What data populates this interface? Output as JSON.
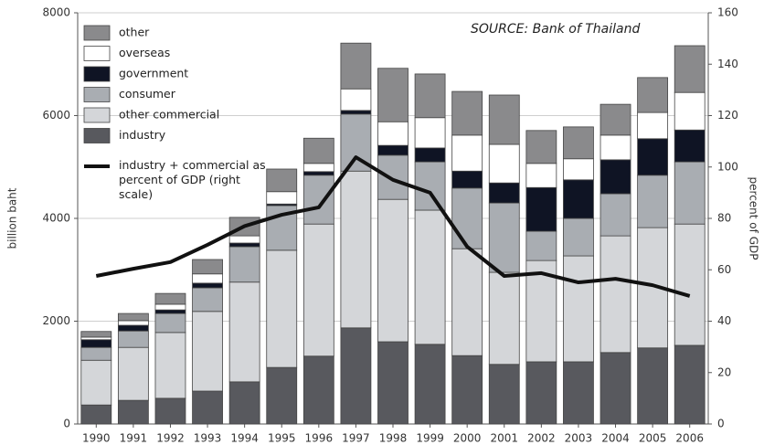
{
  "chart_data": {
    "type": "bar",
    "stacked": true,
    "source": "SOURCE: Bank of Thailand",
    "y_label": "billion baht",
    "y2_label": "percent of GDP",
    "categories": [
      "1990",
      "1991",
      "1992",
      "1993",
      "1994",
      "1995",
      "1996",
      "1997",
      "1998",
      "1999",
      "2000",
      "2001",
      "2002",
      "2003",
      "2004",
      "2005",
      "2006"
    ],
    "series": [
      {
        "name": "industry",
        "color": "#58595e",
        "values": [
          370,
          460,
          500,
          640,
          820,
          1100,
          1320,
          1870,
          1600,
          1550,
          1330,
          1160,
          1210,
          1210,
          1390,
          1480,
          1530
        ]
      },
      {
        "name": "other commercial",
        "color": "#d4d6d9",
        "values": [
          870,
          1030,
          1280,
          1550,
          1940,
          2280,
          2570,
          3050,
          2770,
          2610,
          2080,
          1790,
          1970,
          2060,
          2270,
          2340,
          2360
        ]
      },
      {
        "name": "consumer",
        "color": "#a9adb2",
        "values": [
          250,
          320,
          370,
          460,
          690,
          870,
          950,
          1110,
          860,
          940,
          1180,
          1350,
          570,
          730,
          820,
          1020,
          1210
        ]
      },
      {
        "name": "government",
        "color": "#0f1424",
        "values": [
          150,
          110,
          70,
          90,
          70,
          30,
          70,
          70,
          190,
          270,
          330,
          390,
          850,
          750,
          660,
          710,
          620
        ]
      },
      {
        "name": "overseas",
        "color": "#ffffff",
        "values": [
          50,
          90,
          110,
          180,
          140,
          240,
          160,
          420,
          460,
          590,
          700,
          750,
          470,
          410,
          480,
          510,
          730
        ]
      },
      {
        "name": "other",
        "color": "#8a8a8c",
        "values": [
          110,
          140,
          210,
          280,
          360,
          440,
          490,
          890,
          1040,
          850,
          850,
          960,
          640,
          620,
          600,
          680,
          910
        ]
      },
      {
        "name": "industry + commercial as percent of GDP (right scale)",
        "type": "line",
        "axis": "y2",
        "color": "#111111",
        "values": [
          57.6,
          60.4,
          63,
          69.7,
          77,
          81.4,
          84.3,
          103.8,
          95,
          90,
          69,
          57.6,
          58.7,
          55.1,
          56.5,
          54,
          49.8
        ]
      }
    ],
    "ylim": [
      0,
      8000
    ],
    "yticks": [
      0,
      2000,
      4000,
      6000,
      8000
    ],
    "y2lim": [
      0,
      160
    ],
    "y2ticks": [
      0,
      20,
      40,
      60,
      80,
      100,
      120,
      140,
      160
    ],
    "grid": true
  }
}
